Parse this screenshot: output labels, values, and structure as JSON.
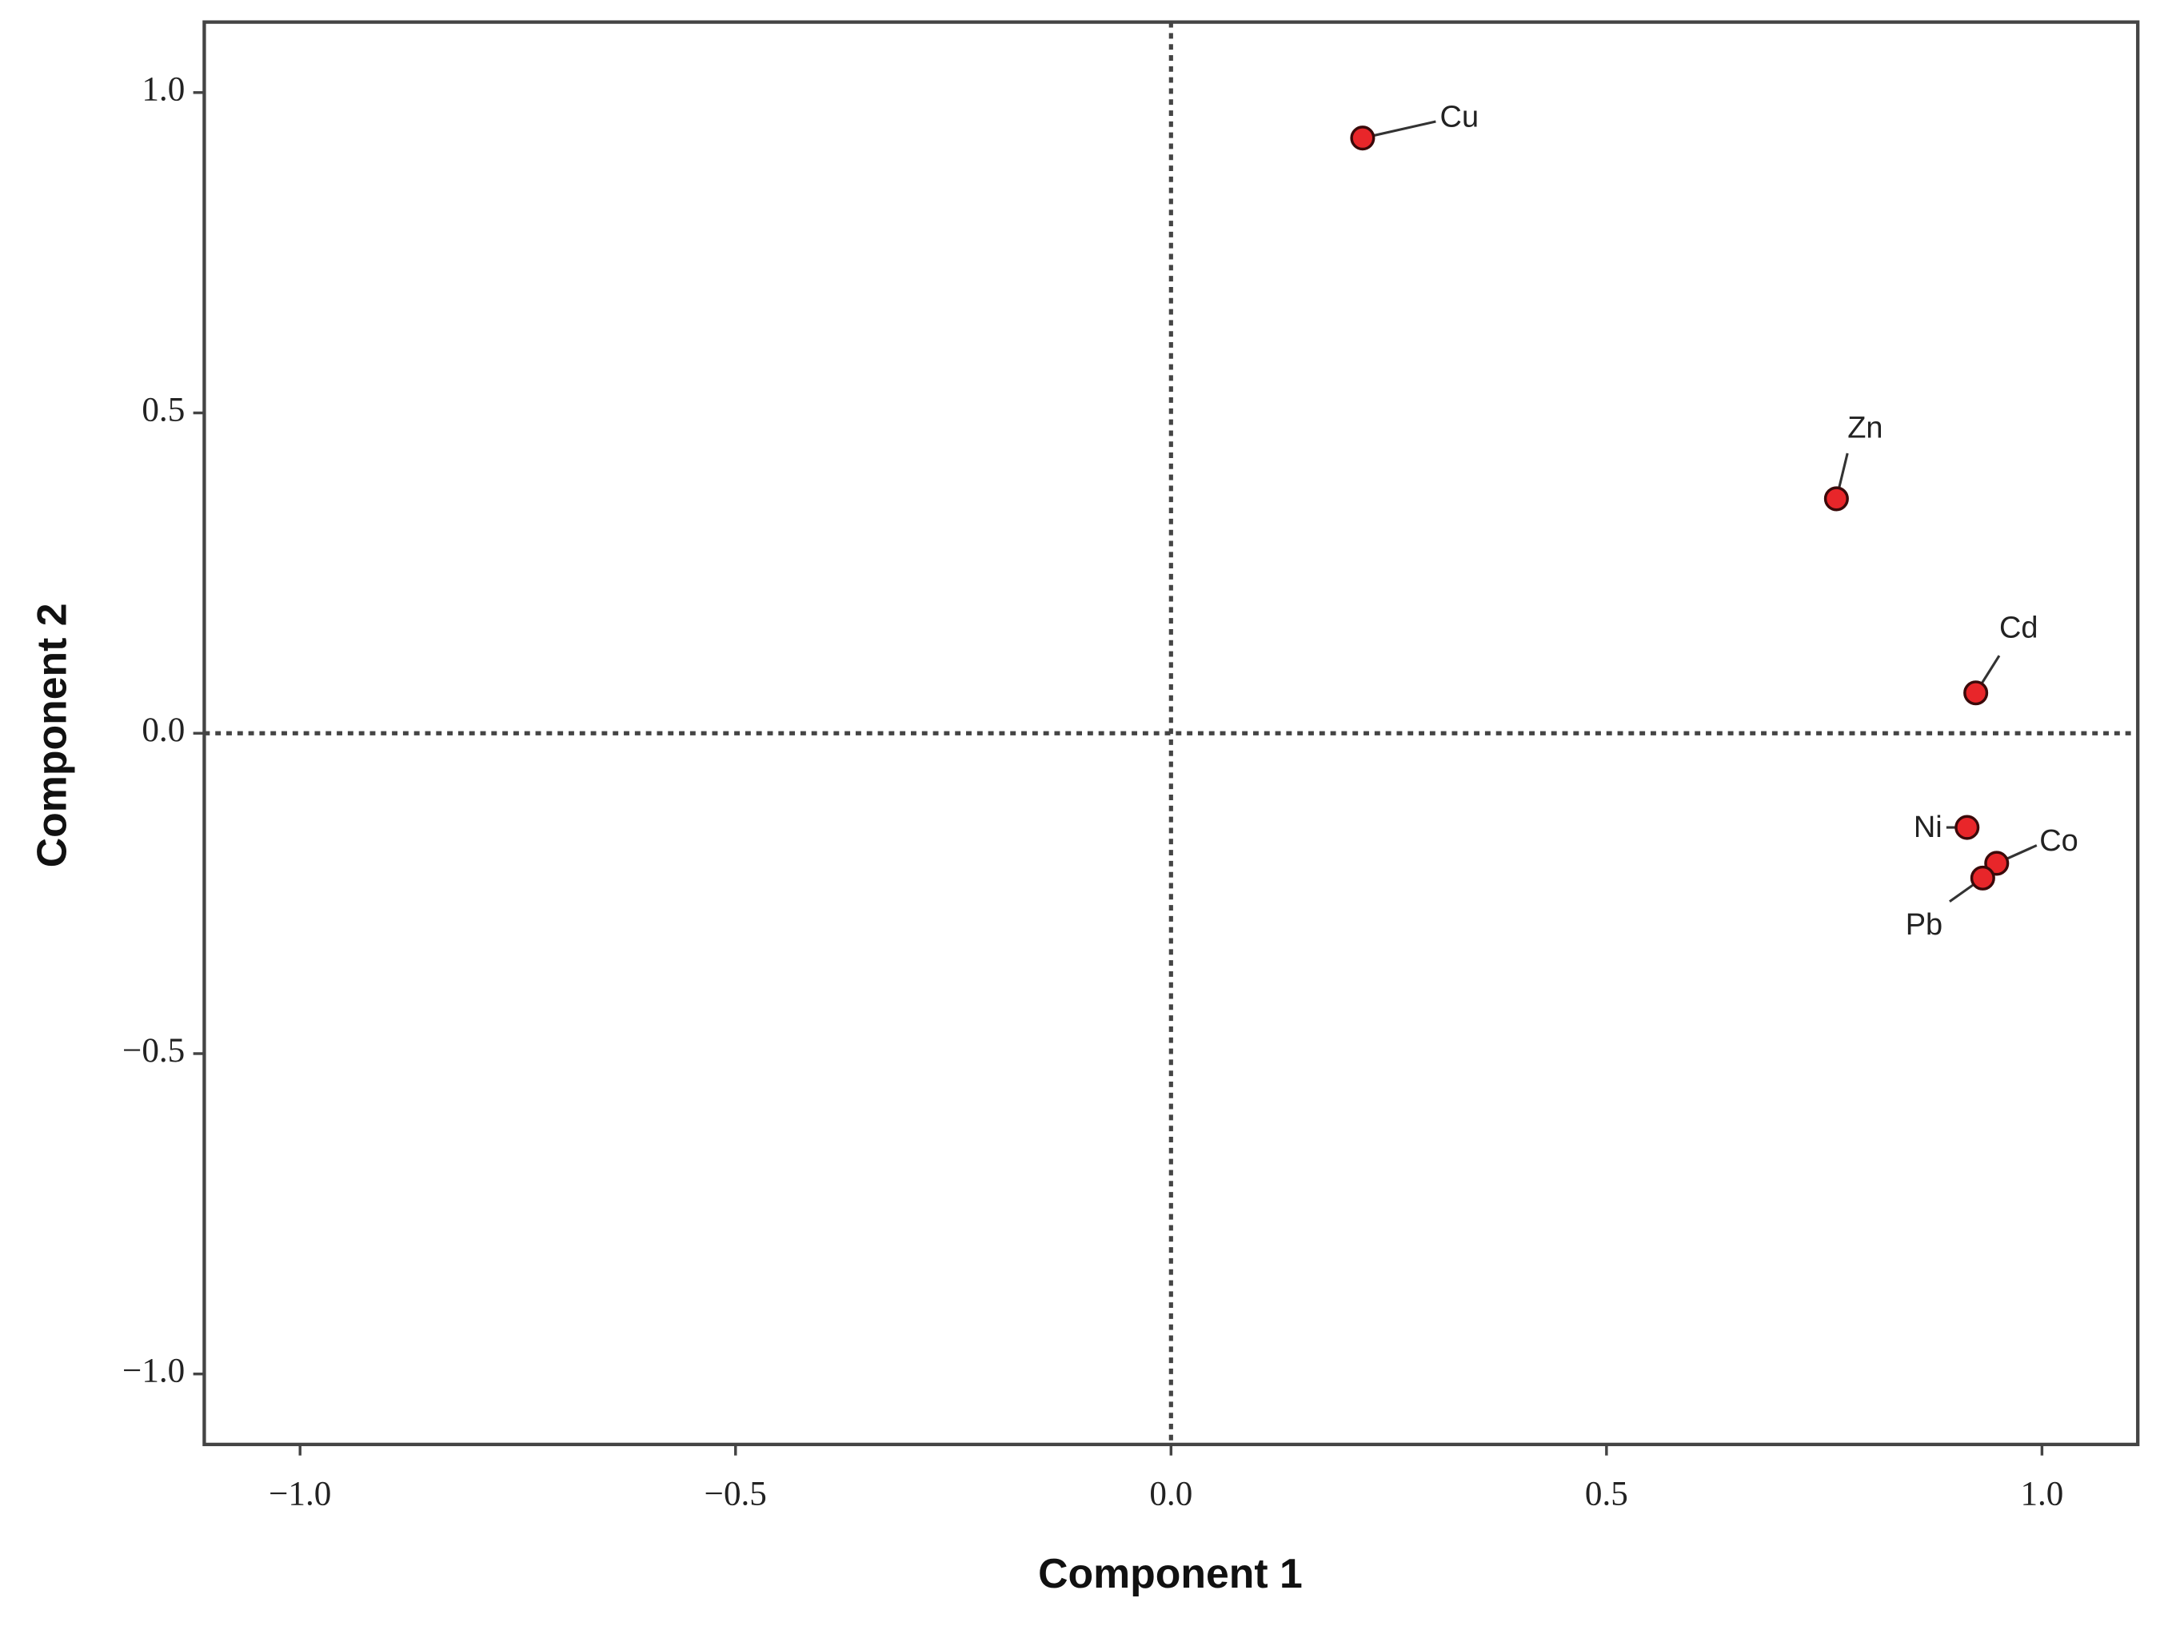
{
  "chart_data": {
    "type": "scatter",
    "x_label": "Component 1",
    "y_label": "Component 2",
    "x": [
      0.22,
      0.764,
      0.924,
      0.914,
      0.948,
      0.932
    ],
    "values": [
      0.929,
      0.366,
      0.063,
      -0.147,
      -0.203,
      -0.226
    ],
    "labels": [
      "Cu",
      "Zn",
      "Cd",
      "Ni",
      "Co",
      "Pb"
    ],
    "color": "#e8262a",
    "xlim": [
      -1.11,
      1.11
    ],
    "ylim": [
      -1.11,
      1.11
    ],
    "xticks": [
      {
        "value": -1,
        "label": "−1.0"
      },
      {
        "value": -0.5,
        "label": "−0.5"
      },
      {
        "value": 0,
        "label": "0.0"
      },
      0.5,
      {
        "value": 1,
        "label": "1.0"
      }
    ],
    "yticks": [
      {
        "value": 1,
        "label": "1.0"
      },
      0.5,
      {
        "value": 0,
        "label": "0.0"
      },
      {
        "value": -0.5,
        "label": "−0.5"
      },
      {
        "value": -1,
        "label": "−1.0"
      }
    ],
    "reference_lines": {
      "x": 0,
      "y": 0
    }
  }
}
